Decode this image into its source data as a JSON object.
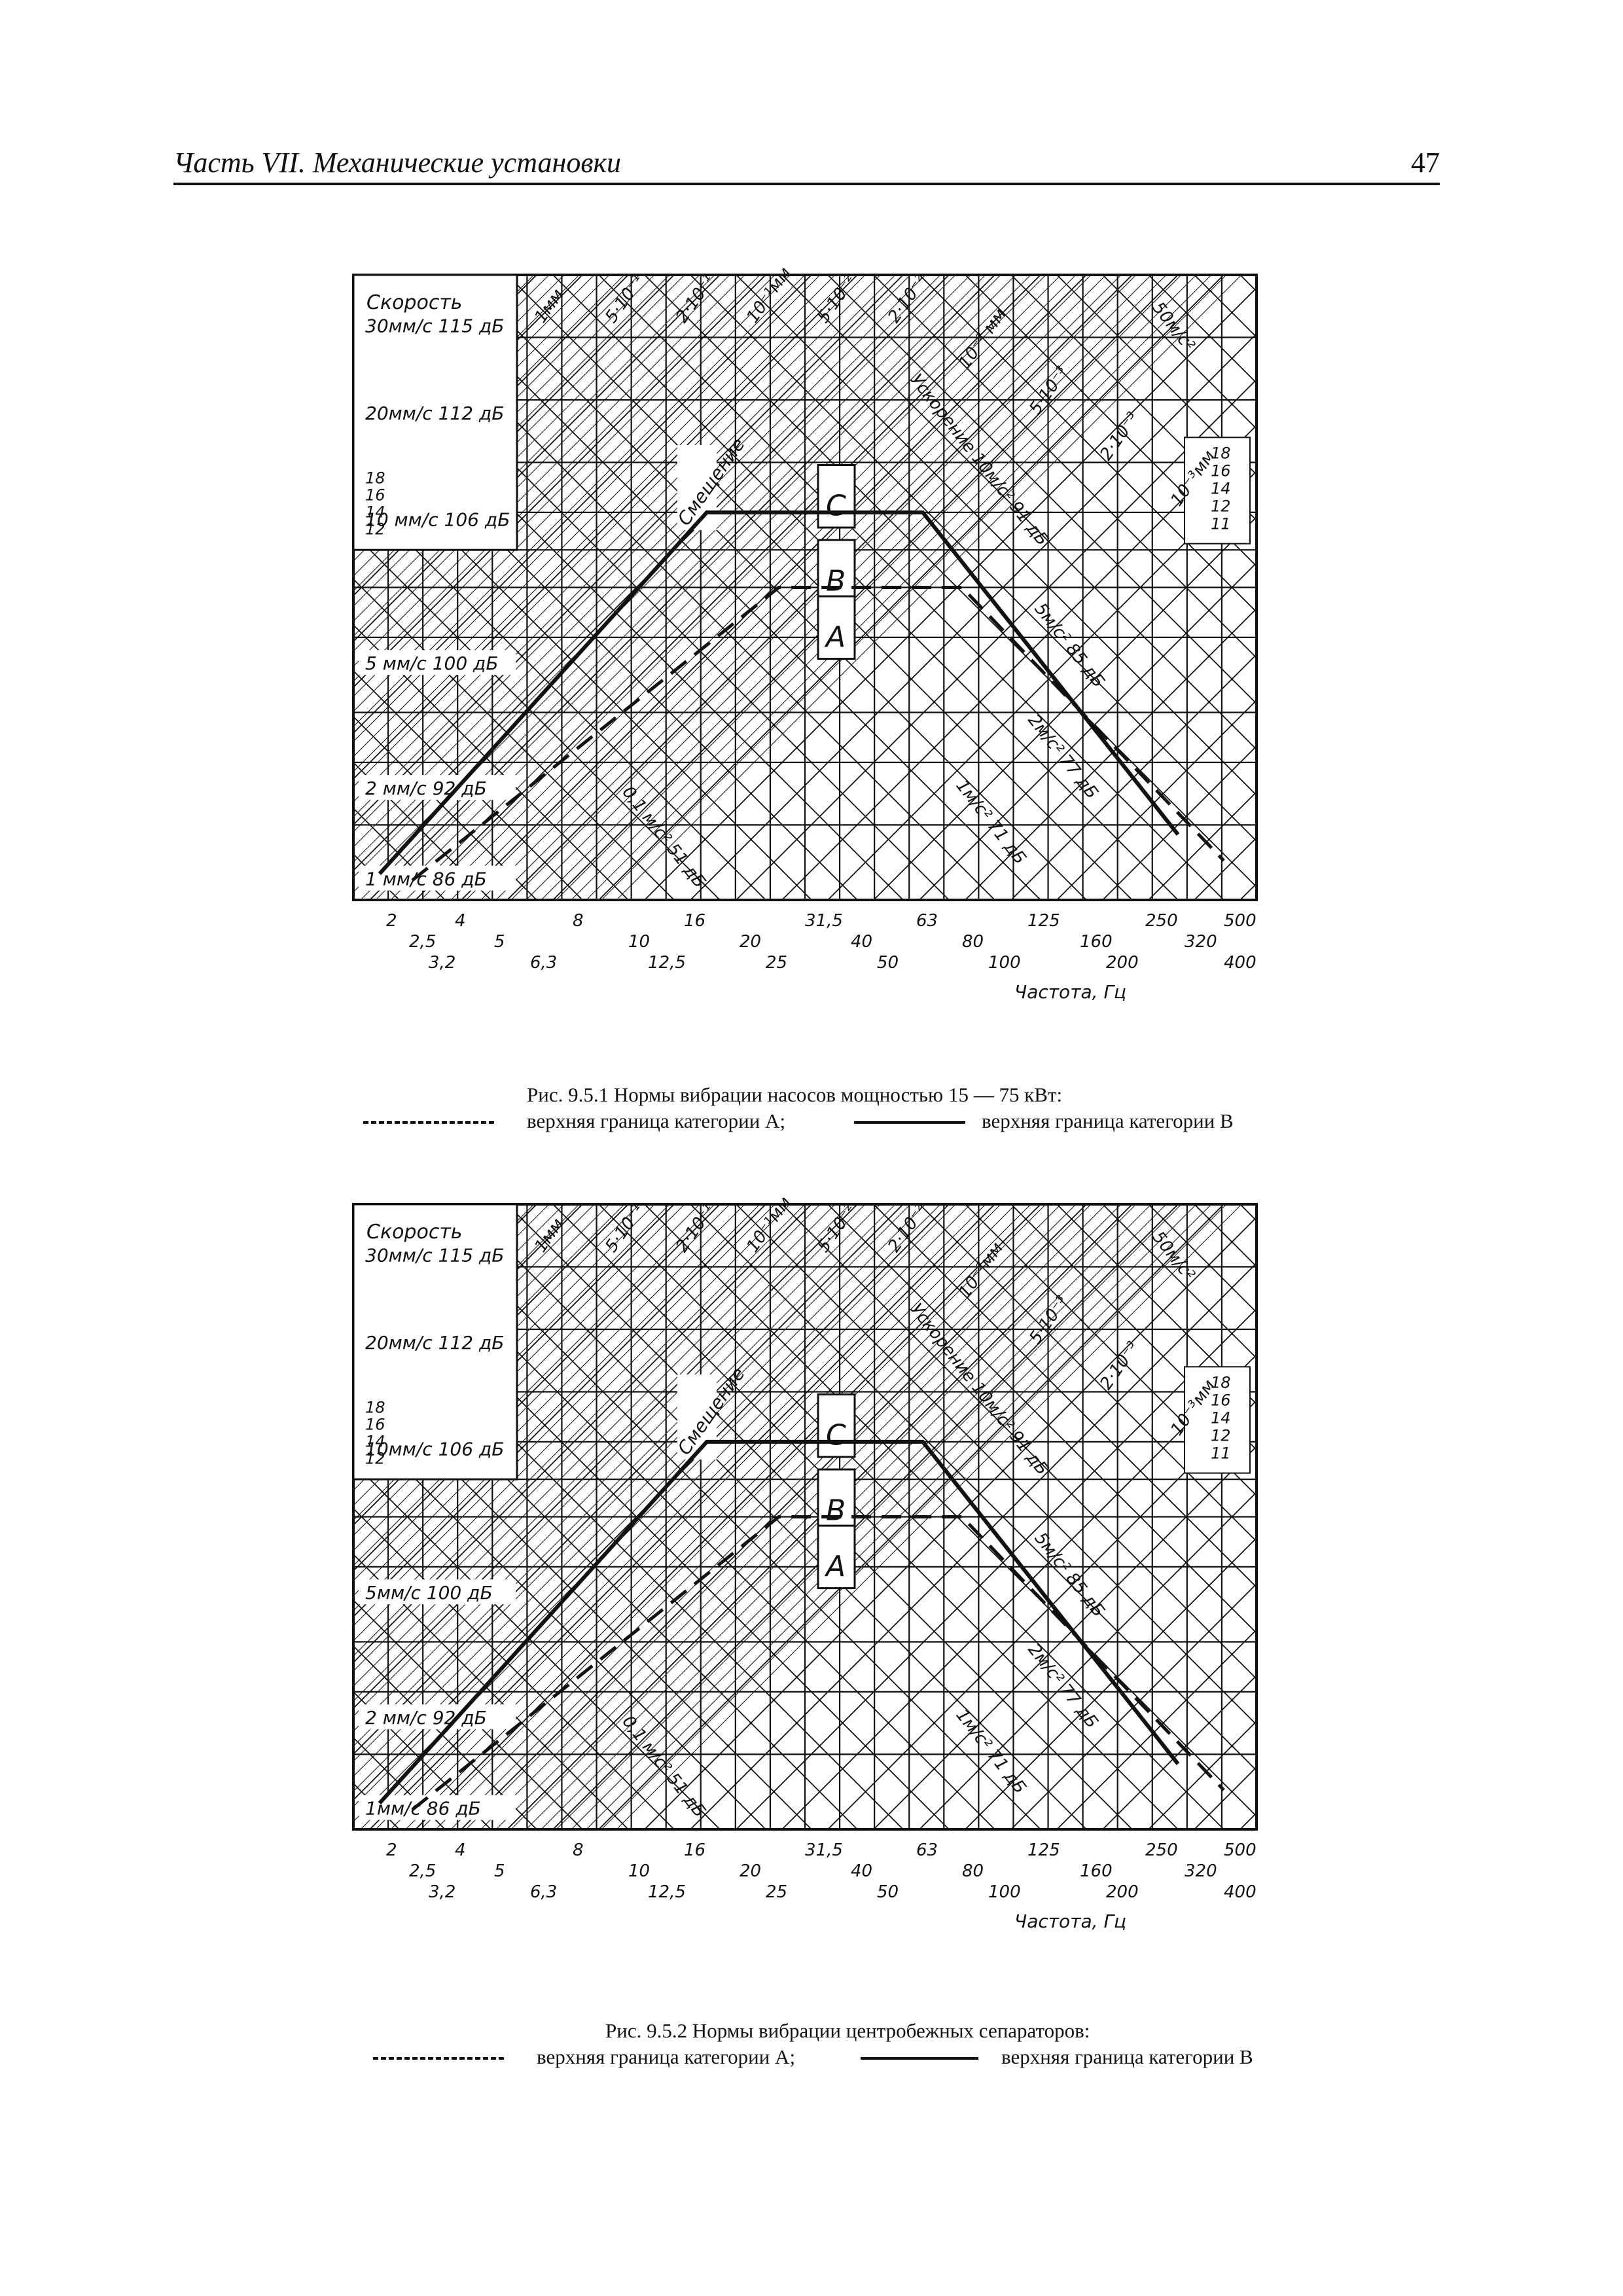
{
  "header": {
    "title": "Часть VII. Механические установки",
    "page_number": "47"
  },
  "charts": [
    {
      "speed_header": "Скорость",
      "speed_labels": [
        "30мм/с 115 дБ",
        "20мм/с 112 дБ",
        "10 мм/с 106 дБ",
        "5 мм/с 100 дБ",
        "2 мм/с 92 дБ",
        "1 мм/с 86 дБ"
      ],
      "left_scale": [
        "18",
        "16",
        "14",
        "12"
      ],
      "right_scale": [
        "18",
        "16",
        "14",
        "12",
        "11"
      ],
      "displacement_labels": [
        "1мм",
        "5·10⁻¹",
        "2·10⁻¹",
        "10⁻¹мм",
        "5·10⁻²",
        "2·10⁻²",
        "10⁻² мм",
        "5·10⁻³",
        "2·10⁻³",
        "10⁻³мм"
      ],
      "accel_labels": [
        "50м/с²",
        "Ускорение 10м/с² 91 дБ",
        "5м/с² 85 дБ",
        "2м/с² 77 дБ",
        "1м/с² 71 дБ",
        "0,1 м/с² 51 дБ"
      ],
      "region_word": "Смещение",
      "zones": [
        "C",
        "B",
        "A"
      ],
      "freq_row1": [
        "2",
        "4",
        "8",
        "16",
        "31,5",
        "63",
        "125",
        "250",
        "500"
      ],
      "freq_row2": [
        "2,5",
        "5",
        "10",
        "20",
        "40",
        "80",
        "160",
        "320"
      ],
      "freq_row3": [
        "3,2",
        "6,3",
        "12,5",
        "25",
        "50",
        "100",
        "200",
        "400"
      ],
      "freq_axis_label": "Частота, Гц",
      "caption": "Рис. 9.5.1 Нормы вибрации насосов мощностью 15 — 75 кВт:",
      "legend_a": "верхняя граница категории А;",
      "legend_b": "верхняя граница категории В"
    },
    {
      "speed_header": "Скорость",
      "speed_labels": [
        "30мм/с 115 дБ",
        "20мм/с 112 дБ",
        "10мм/с 106 дБ",
        "5мм/с 100 дБ",
        "2 мм/с 92 дБ",
        "1мм/с 86 дБ"
      ],
      "left_scale": [
        "18",
        "16",
        "14",
        "12"
      ],
      "right_scale": [
        "18",
        "16",
        "14",
        "12",
        "11"
      ],
      "displacement_labels": [
        "1мм",
        "5·10⁻¹",
        "2·10⁻¹",
        "10⁻¹мм",
        "5·10⁻²",
        "2·10⁻²",
        "10⁻²мм",
        "5·10⁻³",
        "2·10⁻³",
        "10⁻³мм"
      ],
      "accel_labels": [
        "50м/с²",
        "Ускорение 10м/с² 91 дБ",
        "5м/с² 85 дБ",
        "2м/с² 77 дБ",
        "1м/с² 71 дБ",
        "0,1 м/с² 51 дБ"
      ],
      "region_word": "Смещение",
      "zones": [
        "C",
        "B",
        "A"
      ],
      "freq_row1": [
        "2",
        "4",
        "8",
        "16",
        "31,5",
        "63",
        "125",
        "250",
        "500"
      ],
      "freq_row2": [
        "2,5",
        "5",
        "10",
        "20",
        "40",
        "80",
        "160",
        "320"
      ],
      "freq_row3": [
        "3,2",
        "6,3",
        "12,5",
        "25",
        "50",
        "100",
        "200",
        "400"
      ],
      "freq_axis_label": "Частота, Гц",
      "caption": "Рис. 9.5.2 Нормы вибрации центробежных сепараторов:",
      "legend_a": "верхняя граница категории А;",
      "legend_b": "верхняя граница категории В"
    }
  ]
}
